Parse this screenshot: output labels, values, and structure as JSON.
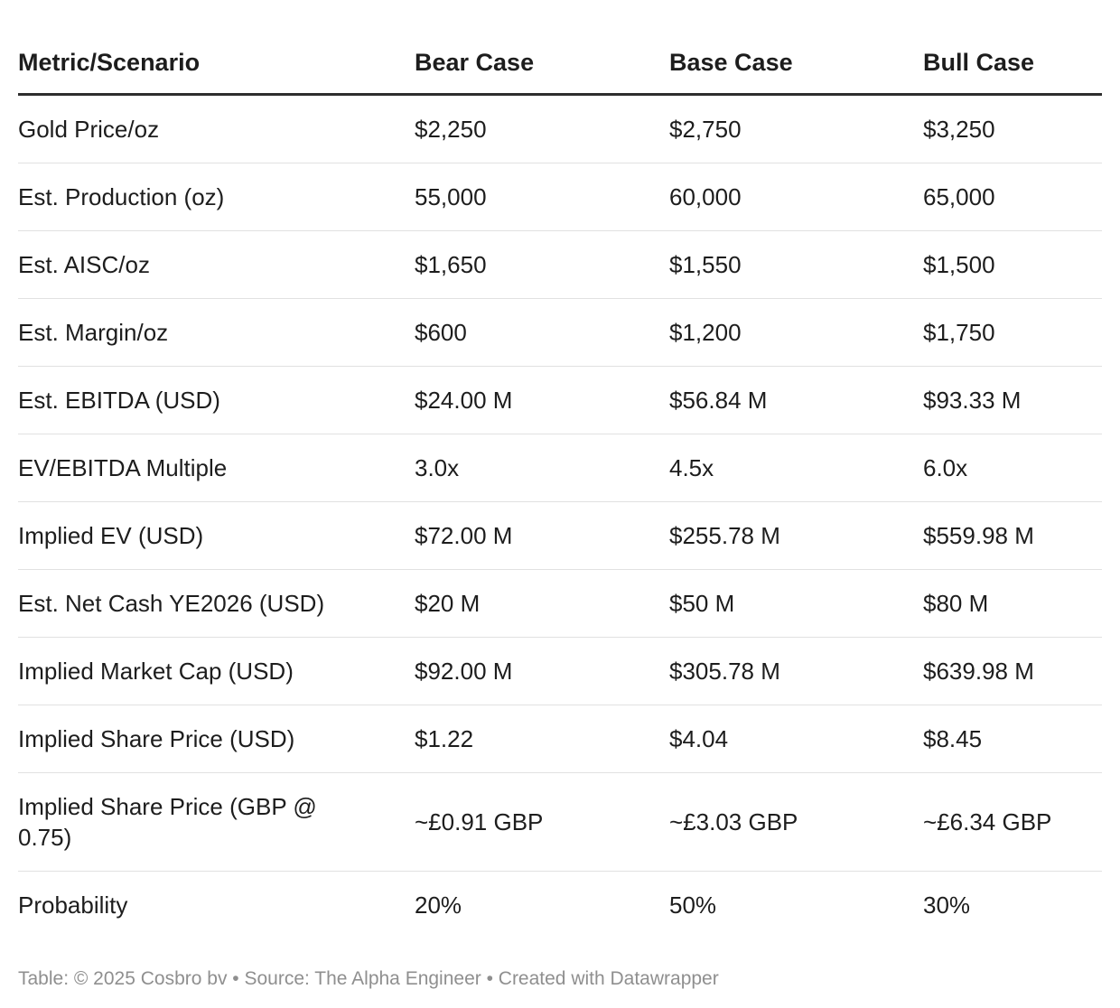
{
  "chart_data": {
    "type": "table",
    "columns": [
      "Metric/Scenario",
      "Bear Case",
      "Base Case",
      "Bull Case"
    ],
    "rows": [
      [
        "Gold Price/oz",
        "$2,250",
        "$2,750",
        "$3,250"
      ],
      [
        "Est. Production (oz)",
        "55,000",
        "60,000",
        "65,000"
      ],
      [
        "Est. AISC/oz",
        "$1,650",
        "$1,550",
        "$1,500"
      ],
      [
        "Est. Margin/oz",
        "$600",
        "$1,200",
        "$1,750"
      ],
      [
        "Est. EBITDA (USD)",
        "$24.00 M",
        "$56.84 M",
        "$93.33 M"
      ],
      [
        "EV/EBITDA Multiple",
        "3.0x",
        "4.5x",
        "6.0x"
      ],
      [
        "Implied EV (USD)",
        "$72.00 M",
        "$255.78 M",
        "$559.98 M"
      ],
      [
        "Est. Net Cash YE2026 (USD)",
        "$20 M",
        "$50 M",
        "$80 M"
      ],
      [
        "Implied Market Cap (USD)",
        "$92.00 M",
        "$305.78 M",
        "$639.98 M"
      ],
      [
        "Implied Share Price (USD)",
        "$1.22",
        "$4.04",
        "$8.45"
      ],
      [
        "Implied Share Price (GBP @ 0.75)",
        "~£0.91 GBP",
        "~£3.03 GBP",
        "~£6.34 GBP"
      ],
      [
        "Probability",
        "20%",
        "50%",
        "30%"
      ]
    ]
  },
  "attribution": {
    "text": "Table: © 2025 Cosbro bv  • Source: The Alpha Engineer • Created with Datawrapper"
  },
  "colors": {
    "background": "#ffffff",
    "text": "#1d1d1d",
    "header_rule": "#2e2e2e",
    "row_divider": "#e1e1e1",
    "attribution_text": "#8f8f8f"
  }
}
